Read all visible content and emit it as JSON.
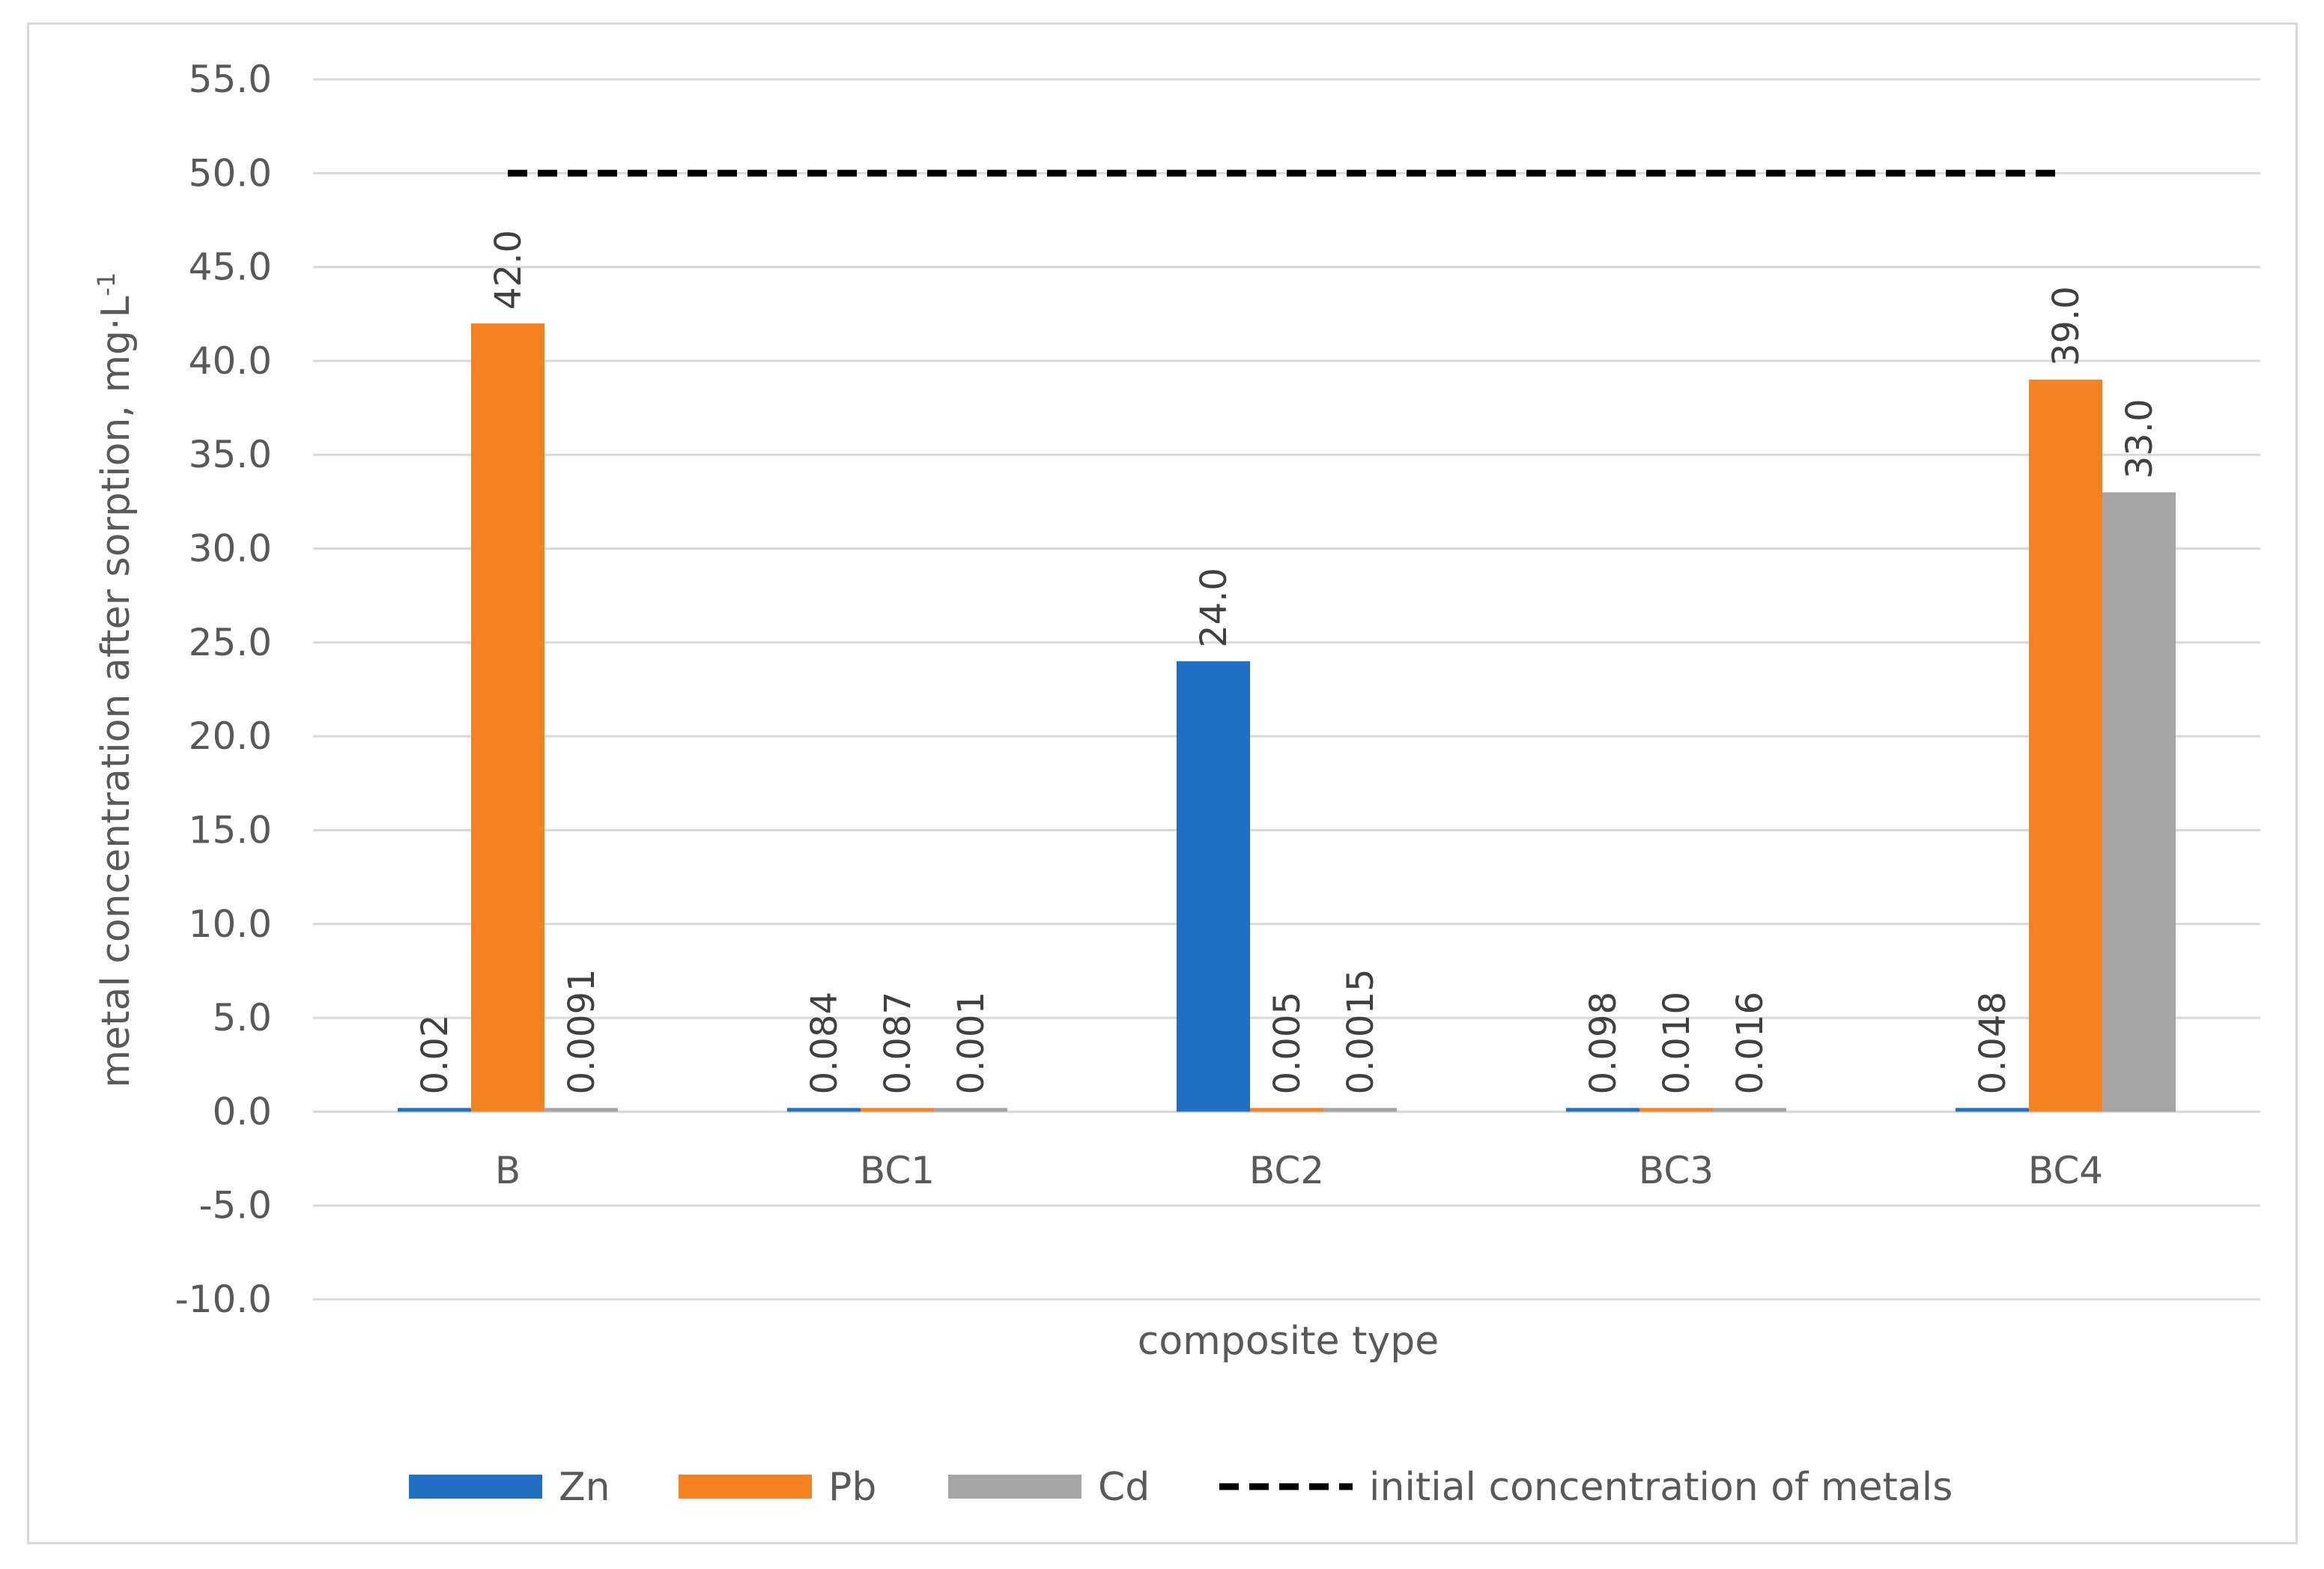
{
  "chart_data": {
    "type": "bar",
    "xlabel": "composite type",
    "ylabel": "metal concentration after sorption, mg·L",
    "ylabel_superscript": "-1",
    "ylim": [
      -10.0,
      55.0
    ],
    "ytick_step": 5.0,
    "yticks": [
      "55.0",
      "50.0",
      "45.0",
      "40.0",
      "35.0",
      "30.0",
      "25.0",
      "20.0",
      "15.0",
      "10.0",
      "5.0",
      "0.0",
      "-5.0",
      "-10.0"
    ],
    "grid": true,
    "legend_position": "bottom",
    "categories": [
      "B",
      "BC1",
      "BC2",
      "BC3",
      "BC4"
    ],
    "series": [
      {
        "name": "Zn",
        "color": "#1f6fc5",
        "values": [
          0.02,
          0.084,
          24.0,
          0.098,
          0.048
        ],
        "labels": [
          "0.02",
          "0.084",
          "24.0",
          "0.098",
          "0.048"
        ]
      },
      {
        "name": "Pb",
        "color": "#f58220",
        "values": [
          42.0,
          0.087,
          0.005,
          0.01,
          39.0
        ],
        "labels": [
          "42.0",
          "0.087",
          "0.005",
          "0.010",
          "39.0"
        ]
      },
      {
        "name": "Cd",
        "color": "#a5a5a5",
        "values": [
          0.0091,
          0.001,
          0.0015,
          0.016,
          33.0
        ],
        "labels": [
          "0.0091",
          "0.001",
          "0.0015",
          "0.016",
          "33.0"
        ]
      }
    ],
    "reference_line": {
      "name": "initial concentration of metals",
      "value": 50.0,
      "color": "#000000",
      "style": "dashed"
    }
  }
}
